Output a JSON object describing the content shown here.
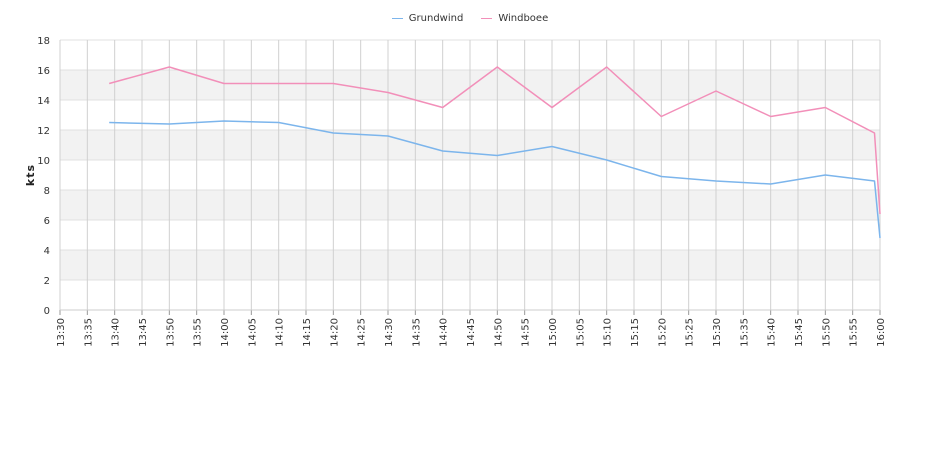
{
  "chart_data": {
    "type": "line",
    "ylabel": "kts",
    "ylim": [
      0,
      18
    ],
    "yticks": [
      0,
      2,
      4,
      6,
      8,
      10,
      12,
      14,
      16,
      18
    ],
    "xticks": [
      "13:30",
      "13:35",
      "13:40",
      "13:45",
      "13:50",
      "13:55",
      "14:00",
      "14:05",
      "14:10",
      "14:15",
      "14:20",
      "14:25",
      "14:30",
      "14:35",
      "14:40",
      "14:45",
      "14:50",
      "14:55",
      "15:00",
      "15:05",
      "15:10",
      "15:15",
      "15:20",
      "15:25",
      "15:30",
      "15:35",
      "15:40",
      "15:45",
      "15:50",
      "15:55",
      "16:00"
    ],
    "xlim": [
      "13:30",
      "16:00"
    ],
    "legend_position": "top-center",
    "grid": true,
    "band_color": "#f2f2f2",
    "series": [
      {
        "name": "Grundwind",
        "color": "#7cb5ec",
        "x": [
          "13:39",
          "13:50",
          "14:00",
          "14:10",
          "14:20",
          "14:30",
          "14:40",
          "14:50",
          "15:00",
          "15:10",
          "15:20",
          "15:30",
          "15:40",
          "15:50",
          "15:59",
          "16:00"
        ],
        "values": [
          12.5,
          12.4,
          12.6,
          12.5,
          11.8,
          11.6,
          10.6,
          10.3,
          10.9,
          10.0,
          8.9,
          8.6,
          8.4,
          9.0,
          8.6,
          4.8
        ]
      },
      {
        "name": "Windboee",
        "color": "#f28fb9",
        "x": [
          "13:39",
          "13:50",
          "14:00",
          "14:10",
          "14:20",
          "14:30",
          "14:40",
          "14:50",
          "15:00",
          "15:10",
          "15:20",
          "15:30",
          "15:40",
          "15:50",
          "15:59",
          "16:00"
        ],
        "values": [
          15.1,
          16.2,
          15.1,
          15.1,
          15.1,
          14.5,
          13.5,
          16.2,
          13.5,
          16.2,
          12.9,
          14.6,
          12.9,
          13.5,
          11.8,
          6.4
        ]
      }
    ]
  }
}
